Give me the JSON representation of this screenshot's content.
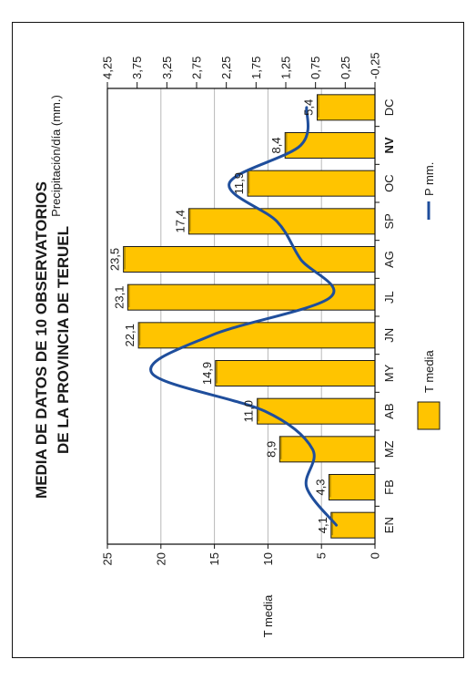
{
  "chart_data": {
    "type": "bar",
    "title": "MEDIA DE DATOS DE 10 OBSERVATORIOS",
    "subtitle": "DE LA PROVINCIA DE TERUEL",
    "categories": [
      "EN",
      "FB",
      "MZ",
      "AB",
      "MY",
      "JN",
      "JL",
      "AG",
      "SP",
      "OC",
      "NV",
      "DC"
    ],
    "series": [
      {
        "name": "T media",
        "type": "bar",
        "axis": "left",
        "color": "#FFC400",
        "values": [
          4.1,
          4.3,
          8.9,
          11.0,
          14.9,
          22.1,
          23.1,
          23.5,
          17.4,
          11.9,
          8.4,
          5.4
        ]
      },
      {
        "name": "P mm.",
        "type": "line",
        "axis": "right",
        "color": "#1F4E9C",
        "values": [
          0.4,
          0.9,
          0.8,
          1.6,
          3.5,
          2.5,
          0.5,
          1.0,
          1.4,
          2.2,
          1.0,
          0.9
        ]
      }
    ],
    "data_labels": [
      "4,1",
      "4,3",
      "8,9",
      "11,0",
      "14,9",
      "22,1",
      "23,1",
      "23,5",
      "17,4",
      "11,9",
      "8,4",
      "5,4"
    ],
    "left_axis": {
      "label": "T media",
      "ylim": [
        0,
        25
      ],
      "ticks": [
        "0",
        "5",
        "10",
        "15",
        "20",
        "25"
      ]
    },
    "right_axis": {
      "label": "Precipitación/día (mm.)",
      "ylim": [
        -0.25,
        4.25
      ],
      "ticks": [
        "-0,25",
        "0,25",
        "0,75",
        "1,25",
        "1,75",
        "2,25",
        "2,75",
        "3,25",
        "3,75",
        "4,25"
      ]
    },
    "highlight_category": "NV",
    "grid": true,
    "legend_position": "bottom",
    "orientation": "rotated 90 degrees counter-clockwise"
  }
}
